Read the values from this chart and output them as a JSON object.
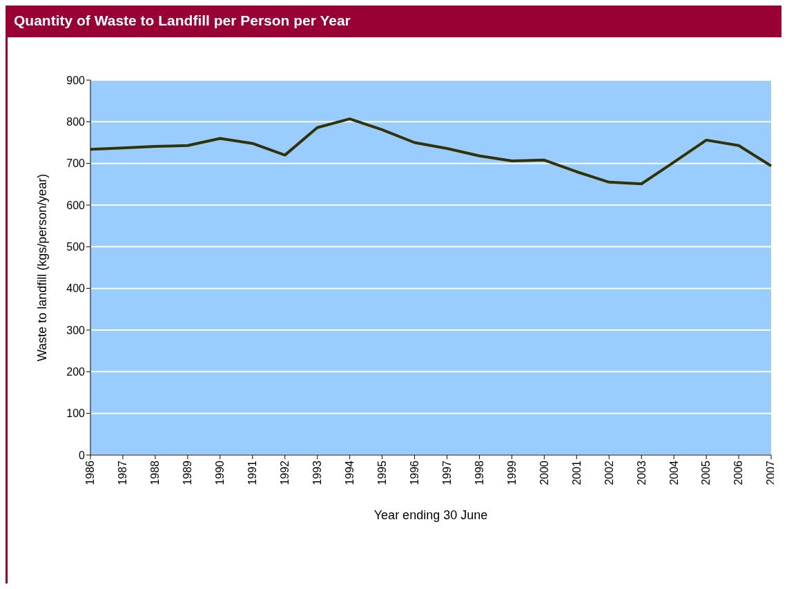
{
  "chart_data": {
    "type": "line",
    "title": "Quantity of Waste to Landfill per Person per Year",
    "xlabel": "Year ending 30 June",
    "ylabel": "Waste to landfill (kgs/person/year)",
    "categories": [
      "1986",
      "1987",
      "1988",
      "1989",
      "1990",
      "1991",
      "1992",
      "1993",
      "1994",
      "1995",
      "1996",
      "1997",
      "1998",
      "1999",
      "2000",
      "2001",
      "2002",
      "2003",
      "2004",
      "2005",
      "2006",
      "2007"
    ],
    "series": [
      {
        "color": "#333300",
        "values": [
          734,
          737,
          741,
          743,
          760,
          748,
          720,
          786,
          807,
          781,
          750,
          736,
          718,
          706,
          708,
          680,
          655,
          651,
          703,
          756,
          743,
          694
        ]
      }
    ],
    "ylim": [
      0,
      900
    ],
    "yticks": [
      0,
      100,
      200,
      300,
      400,
      500,
      600,
      700,
      800,
      900
    ],
    "grid": "y",
    "marker": "none",
    "line_style": "solid"
  }
}
